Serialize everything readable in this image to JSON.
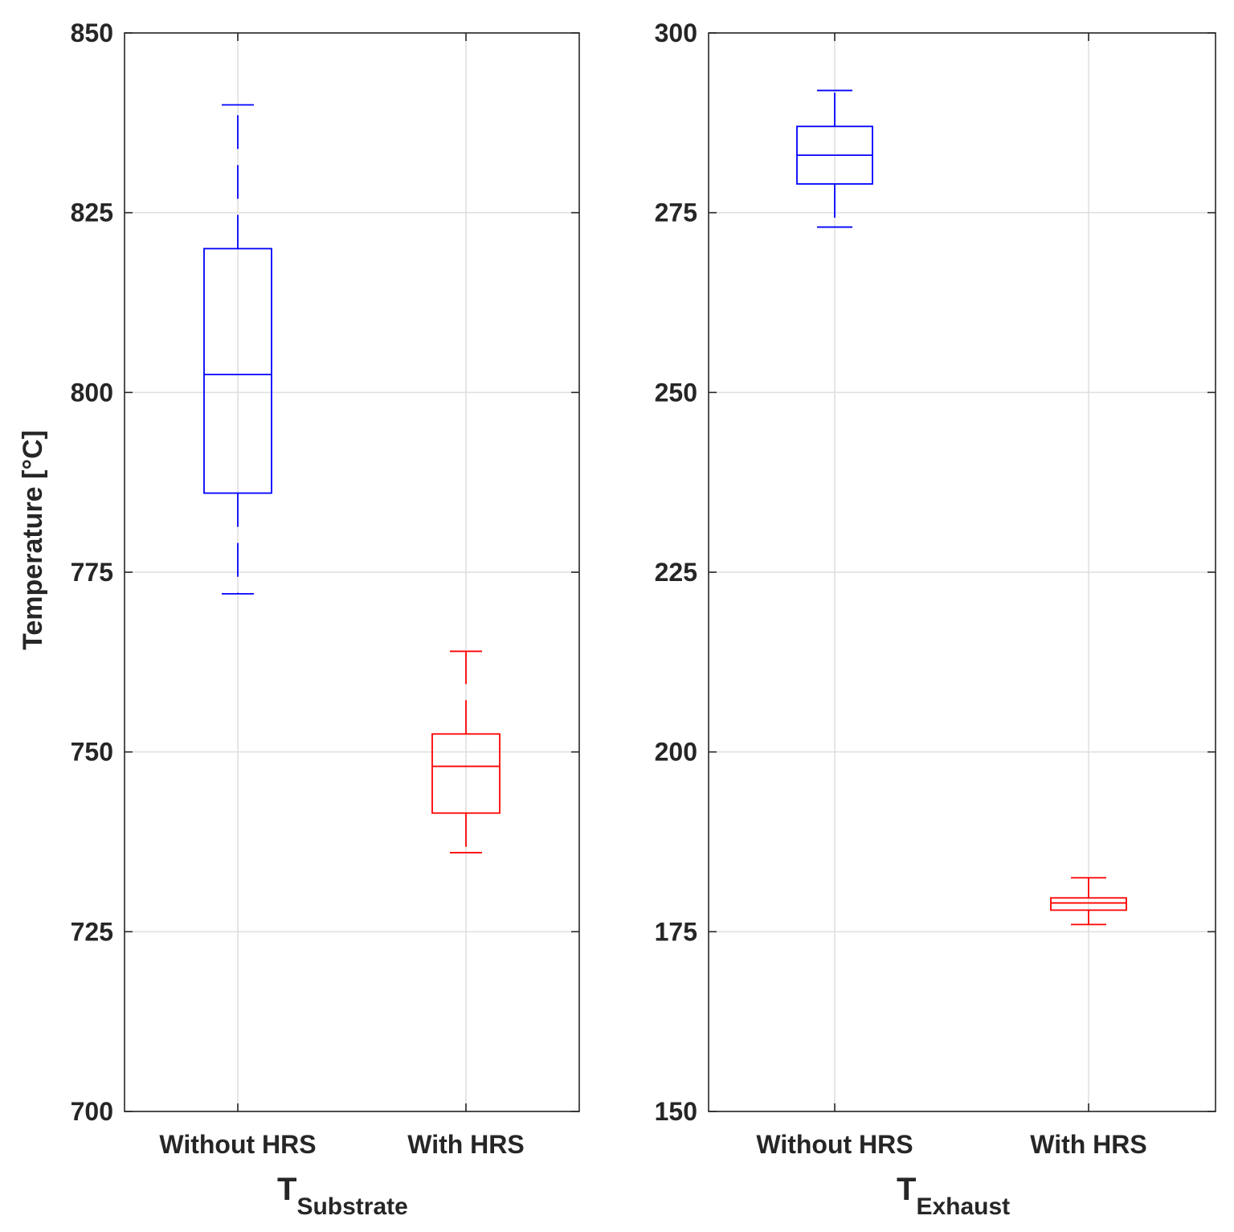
{
  "chart_data": [
    {
      "type": "box",
      "xlabel_main": "T",
      "xlabel_sub": "Substrate",
      "ylabel": "Temperature [°C]",
      "ylim": [
        700,
        850
      ],
      "yticks": [
        700,
        725,
        750,
        775,
        800,
        825,
        850
      ],
      "grid": true,
      "categories": [
        {
          "label_a": "Without",
          "label_b": "HRS"
        },
        {
          "label_a": "With",
          "label_b": "HRS"
        }
      ],
      "boxes": [
        {
          "color": "#0000ff",
          "min": 772,
          "q1": 786,
          "median": 802.5,
          "q3": 820,
          "max": 840
        },
        {
          "color": "#ff0000",
          "min": 736,
          "q1": 741.5,
          "median": 748,
          "q3": 752.5,
          "max": 764
        }
      ]
    },
    {
      "type": "box",
      "xlabel_main": "T",
      "xlabel_sub": "Exhaust",
      "ylabel": "",
      "ylim": [
        150,
        300
      ],
      "yticks": [
        150,
        175,
        200,
        225,
        250,
        275,
        300
      ],
      "grid": true,
      "categories": [
        {
          "label_a": "Without",
          "label_b": "HRS"
        },
        {
          "label_a": "With",
          "label_b": "HRS"
        }
      ],
      "boxes": [
        {
          "color": "#0000ff",
          "min": 273,
          "q1": 279,
          "median": 283,
          "q3": 287,
          "max": 292
        },
        {
          "color": "#ff0000",
          "min": 176,
          "q1": 178,
          "median": 179,
          "q3": 179.7,
          "max": 182.5
        }
      ]
    }
  ]
}
